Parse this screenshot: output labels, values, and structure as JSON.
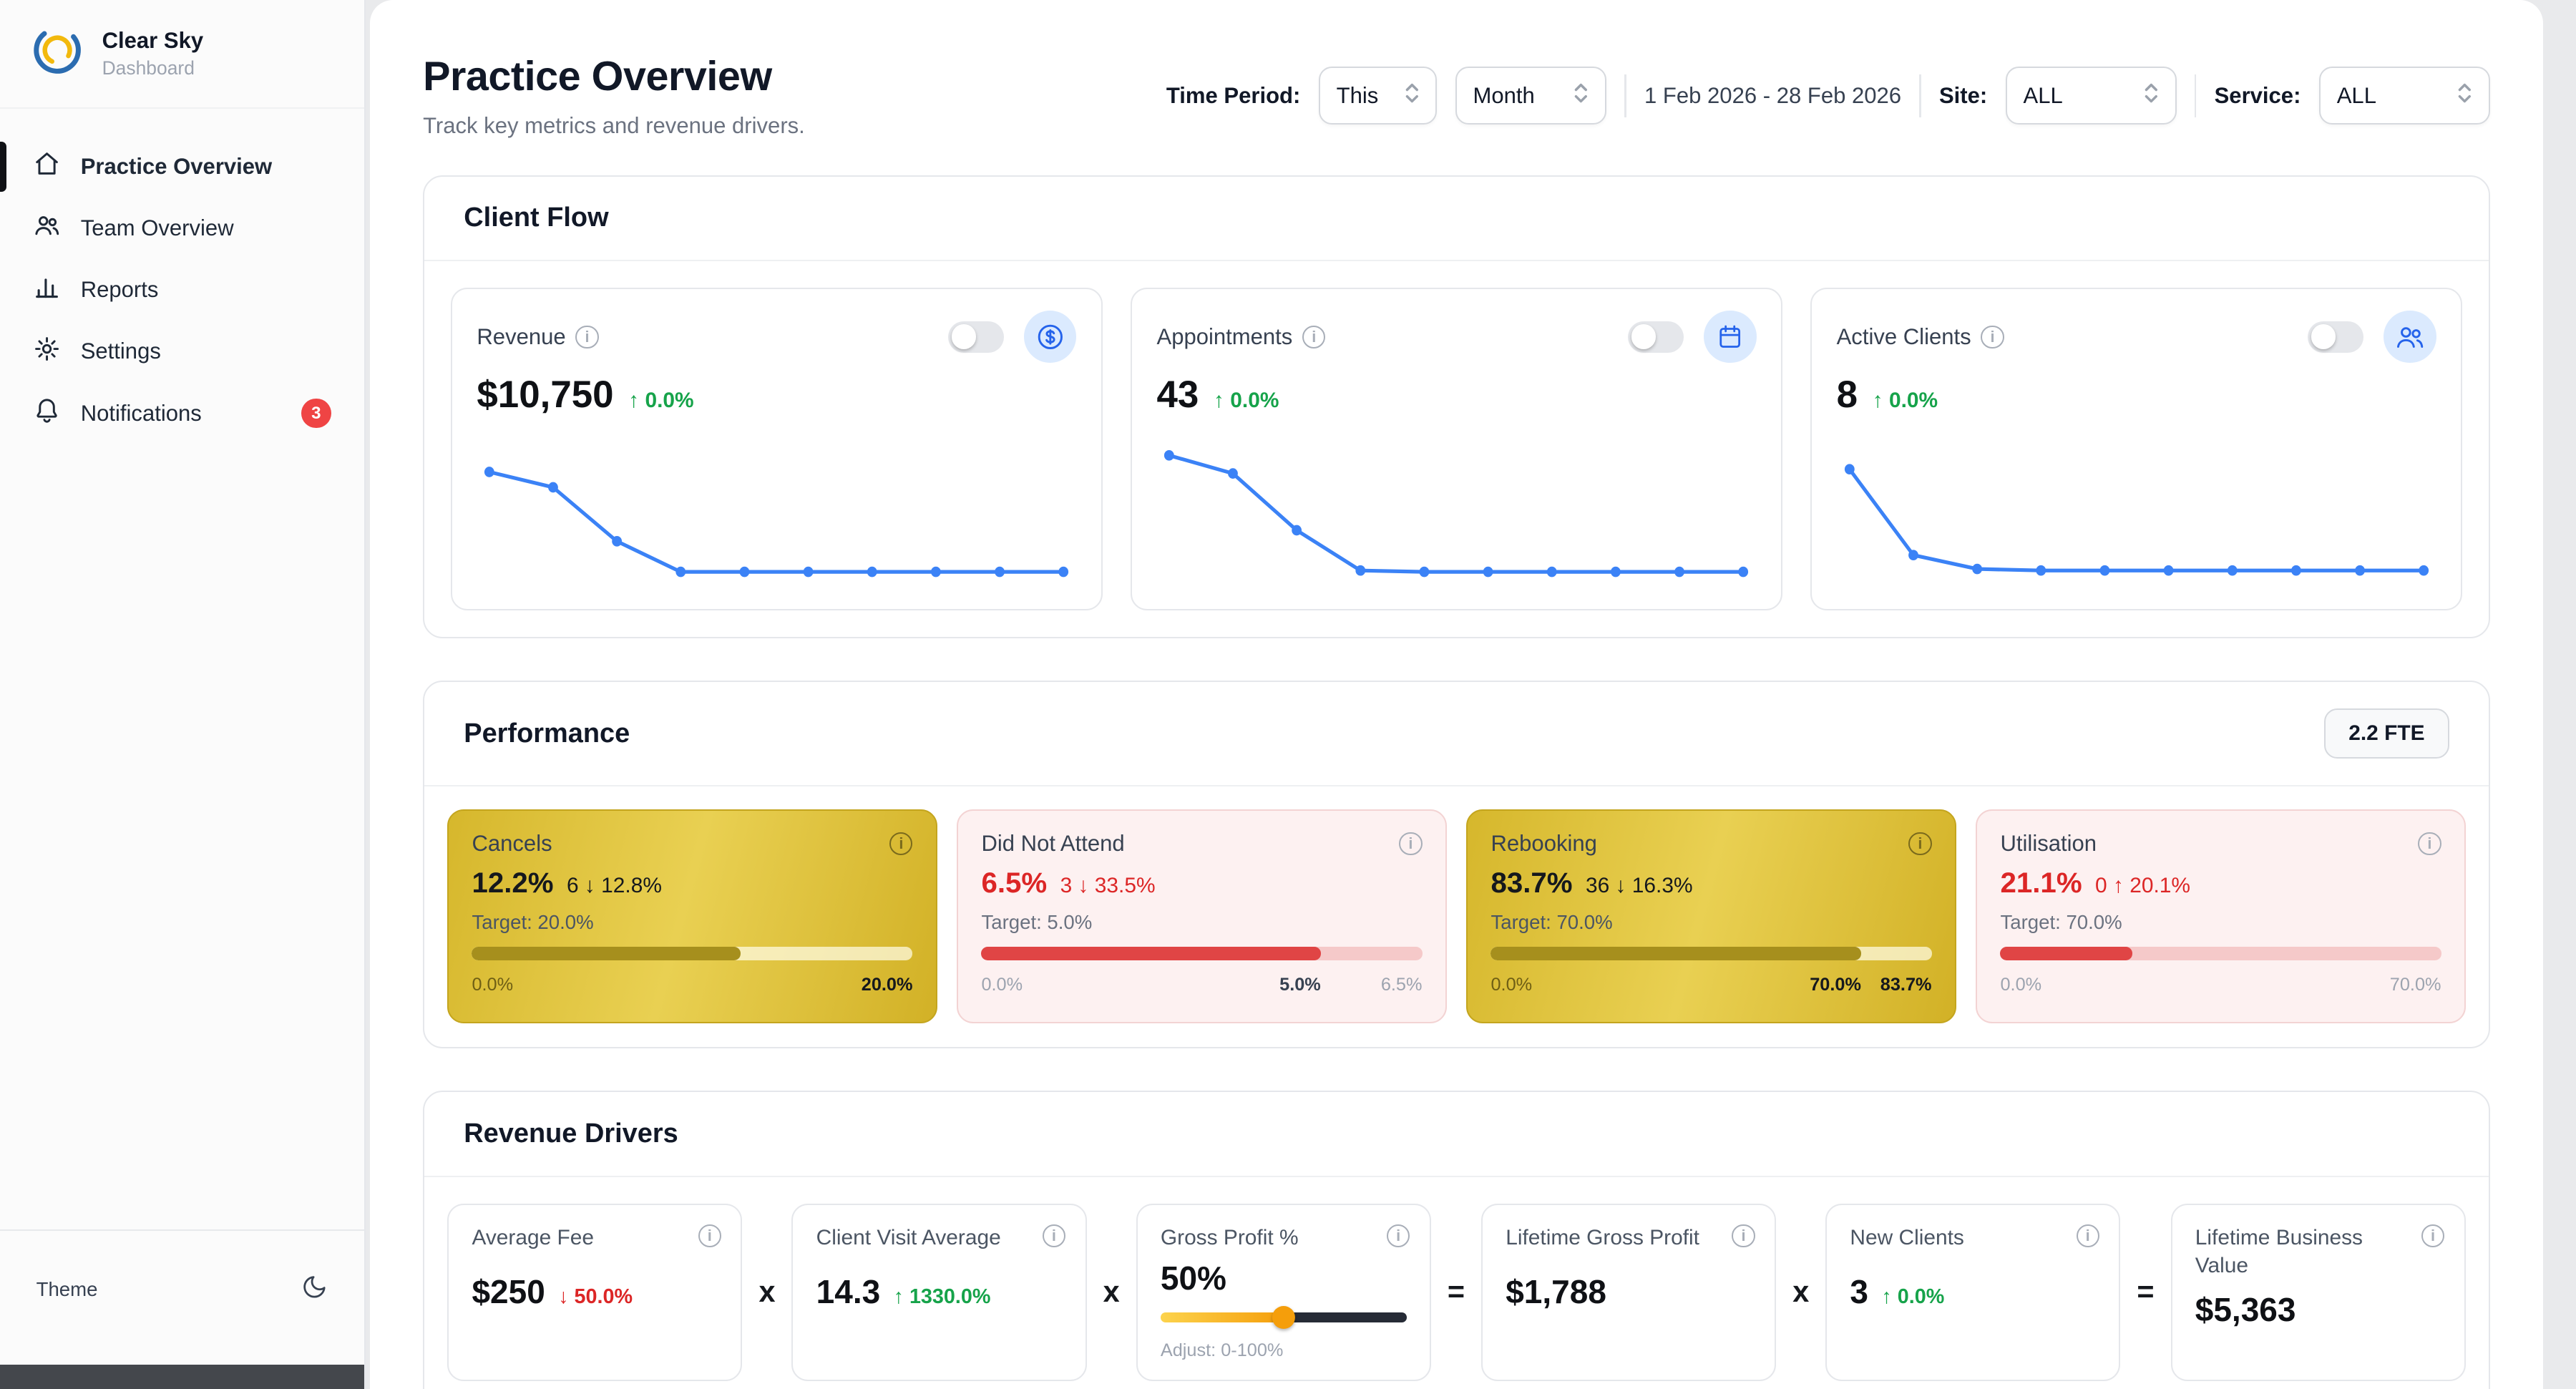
{
  "colors": {
    "accent_blue": "#3b82f6",
    "positive_green": "#16a34a",
    "negative_red": "#dc2626",
    "gold": "#e0c23a",
    "badge_red": "#ef4444"
  },
  "sidebar": {
    "brand_name": "Clear Sky",
    "brand_subtitle": "Dashboard",
    "items": [
      {
        "label": "Practice Overview",
        "active": true
      },
      {
        "label": "Team Overview"
      },
      {
        "label": "Reports"
      },
      {
        "label": "Settings"
      },
      {
        "label": "Notifications",
        "badge": "3"
      }
    ],
    "theme_label": "Theme"
  },
  "header": {
    "title": "Practice Overview",
    "subtitle": "Track key metrics and revenue drivers.",
    "time_period_label": "Time Period:",
    "period_primary": "This",
    "period_secondary": "Month",
    "date_range": "1 Feb 2026 - 28 Feb 2026",
    "site_label": "Site:",
    "site_value": "ALL",
    "service_label": "Service:",
    "service_value": "ALL"
  },
  "client_flow": {
    "title": "Client Flow",
    "cards": [
      {
        "label": "Revenue",
        "value": "$10,750",
        "delta": "↑ 0.0%",
        "icon": "dollar-icon",
        "sparkline": [
          78,
          67,
          28,
          6,
          6,
          6,
          6,
          6,
          6,
          6
        ]
      },
      {
        "label": "Appointments",
        "value": "43",
        "delta": "↑ 0.0%",
        "icon": "calendar-icon",
        "sparkline": [
          90,
          77,
          36,
          7,
          6,
          6,
          6,
          6,
          6,
          6
        ]
      },
      {
        "label": "Active Clients",
        "value": "8",
        "delta": "↑ 0.0%",
        "icon": "users-icon",
        "sparkline": [
          80,
          18,
          8,
          7,
          7,
          7,
          7,
          7,
          7,
          7
        ]
      }
    ]
  },
  "performance": {
    "title": "Performance",
    "fte_badge": "2.2 FTE",
    "cards": [
      {
        "label": "Cancels",
        "value": "12.2%",
        "detail": "6 ↓ 12.8%",
        "target": "Target: 20.0%",
        "variant": "gold",
        "fill_pct": 61,
        "scale_left": "0.0%",
        "scale_right": "20.0%"
      },
      {
        "label": "Did Not Attend",
        "value": "6.5%",
        "detail": "3 ↓ 33.5%",
        "target": "Target: 5.0%",
        "variant": "pink",
        "fill_pct": 77,
        "scale_left": "0.0%",
        "scale_mid": "5.0%",
        "scale_mid_pct": 77,
        "scale_right": "6.5%"
      },
      {
        "label": "Rebooking",
        "value": "83.7%",
        "detail": "36 ↓ 16.3%",
        "target": "Target: 70.0%",
        "variant": "gold",
        "fill_pct": 84,
        "scale_left": "0.0%",
        "scale_mid": "70.0%",
        "scale_mid_pct": 84,
        "scale_right": "83.7%"
      },
      {
        "label": "Utilisation",
        "value": "21.1%",
        "detail": "0 ↑ 20.1%",
        "target": "Target: 70.0%",
        "variant": "pink",
        "fill_pct": 30,
        "scale_left": "0.0%",
        "scale_right": "70.0%"
      }
    ]
  },
  "revenue_drivers": {
    "title": "Revenue Drivers",
    "operators": [
      "x",
      "x",
      "=",
      "x",
      "="
    ],
    "cards": [
      {
        "label": "Average Fee",
        "value": "$250",
        "delta": "↓ 50.0%",
        "delta_color": "red"
      },
      {
        "label": "Client Visit Average",
        "value": "14.3",
        "delta": "↑ 1330.0%",
        "delta_color": "green"
      },
      {
        "label": "Gross Profit %",
        "value": "50%",
        "slider_pct": 50,
        "adjust_label": "Adjust: 0-100%"
      },
      {
        "label": "Lifetime Gross Profit",
        "value": "$1,788"
      },
      {
        "label": "New Clients",
        "value": "3",
        "delta": "↑ 0.0%",
        "delta_color": "green"
      },
      {
        "label": "Lifetime Business Value",
        "value": "$5,363"
      }
    ]
  }
}
